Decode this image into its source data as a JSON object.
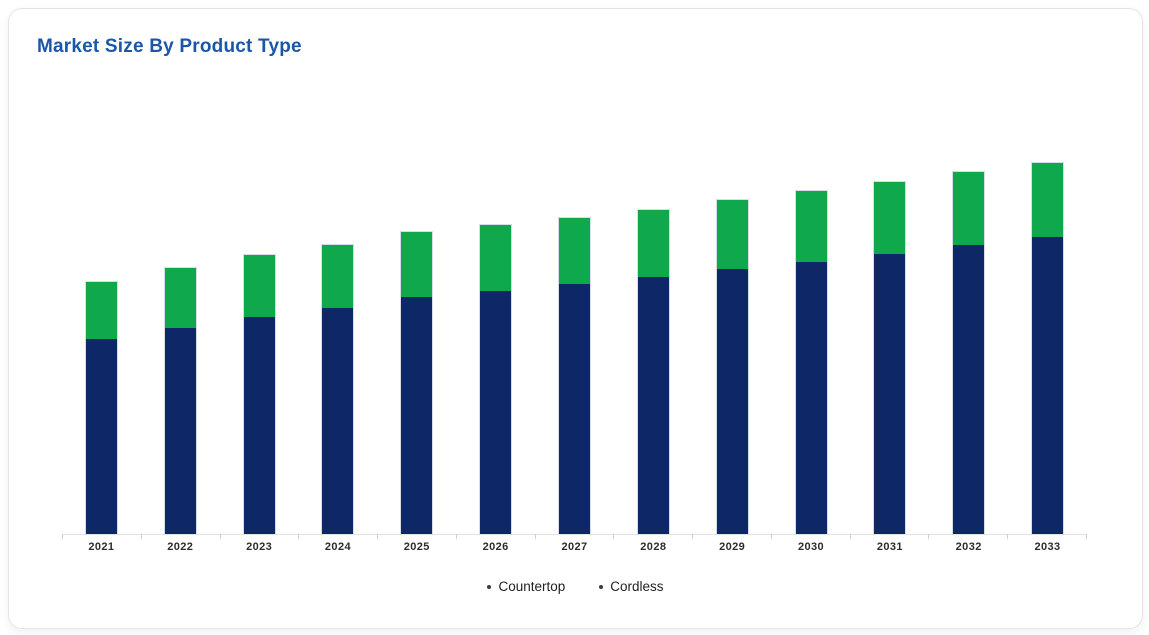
{
  "page": {
    "background": "#ffffff"
  },
  "card": {
    "title": "Market Size By Product Type",
    "title_color": "#1b57a9"
  },
  "chart_data": {
    "type": "bar",
    "stacked": true,
    "title": "Market Size By Product Type",
    "categories": [
      "2021",
      "2022",
      "2023",
      "2024",
      "2025",
      "2026",
      "2027",
      "2028",
      "2029",
      "2030",
      "2031",
      "2032",
      "2033"
    ],
    "series": [
      {
        "name": "Countertop",
        "color": "#0e2766",
        "values": [
          52.5,
          55.5,
          58.5,
          60.8,
          63.9,
          65.5,
          67.5,
          69.2,
          71.3,
          73.3,
          75.4,
          77.8,
          80.0
        ]
      },
      {
        "name": "Cordless",
        "color": "#10a84d",
        "values": [
          15.4,
          16.2,
          16.7,
          17.1,
          17.5,
          17.8,
          17.8,
          18.2,
          18.7,
          19.1,
          19.6,
          19.8,
          20.0
        ]
      }
    ],
    "totals": [
      67.9,
      71.7,
      75.2,
      77.9,
      81.4,
      83.3,
      85.3,
      87.4,
      90.0,
      92.4,
      95.0,
      97.6,
      100.0
    ],
    "xlabel": "",
    "ylabel": "",
    "y_axis_visible": false,
    "gridlines": false,
    "legend_position": "bottom",
    "value_scale_note": "No y-axis labels shown in chart; values estimated from bar heights, normalized so the 2033 stacked total equals 100."
  },
  "axis": {
    "line_color": "#e2e2e2",
    "tick_color": "#d0d0d0",
    "label_color": "#2d2d2d"
  },
  "legend": {
    "bullet_color": "#3c3c3c",
    "items": [
      {
        "label": "Countertop"
      },
      {
        "label": "Cordless"
      }
    ]
  }
}
